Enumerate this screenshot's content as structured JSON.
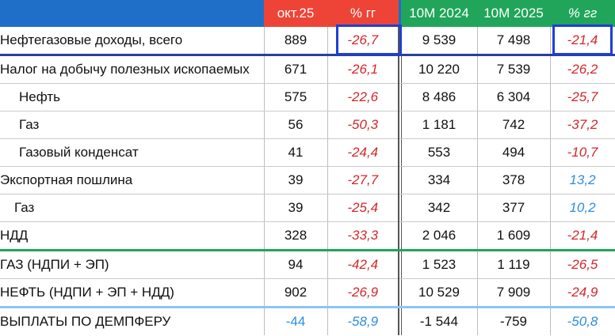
{
  "header": {
    "period_month": "окт.25",
    "pct_yoy_1": "% гг",
    "period_10m_prev": "10M 2024",
    "period_10m_curr": "10M 2025",
    "pct_yoy_2": "% гг"
  },
  "rows": [
    {
      "label": "Нефтегазовые доходы, всего",
      "m": "889",
      "p1": "-26,7",
      "a": "9 539",
      "b": "7 498",
      "p2": "-21,4"
    },
    {
      "label": "Налог на добычу полезных ископаемых",
      "m": "671",
      "p1": "-26,1",
      "a": "10 220",
      "b": "7 539",
      "p2": "-26,2"
    },
    {
      "label": "Нефть",
      "m": "575",
      "p1": "-22,6",
      "a": "8 486",
      "b": "6 304",
      "p2": "-25,7"
    },
    {
      "label": "Газ",
      "m": "56",
      "p1": "-50,3",
      "a": "1 181",
      "b": "742",
      "p2": "-37,2"
    },
    {
      "label": "Газовый конденсат",
      "m": "41",
      "p1": "-24,4",
      "a": "553",
      "b": "494",
      "p2": "-10,7"
    },
    {
      "label": "Экспортная пошлина",
      "m": "39",
      "p1": "-27,7",
      "a": "334",
      "b": "378",
      "p2": "13,2"
    },
    {
      "label": "Газ",
      "m": "39",
      "p1": "-25,4",
      "a": "342",
      "b": "377",
      "p2": "10,2"
    },
    {
      "label": "НДД",
      "m": "328",
      "p1": "-33,3",
      "a": "2 046",
      "b": "1 609",
      "p2": "-21,4"
    },
    {
      "label": "ГАЗ (НДПИ + ЭП)",
      "m": "94",
      "p1": "-42,4",
      "a": "1 523",
      "b": "1 119",
      "p2": "-26,5"
    },
    {
      "label": "НЕФТЬ (НДПИ + ЭП + НДД)",
      "m": "902",
      "p1": "-26,9",
      "a": "10 529",
      "b": "7 909",
      "p2": "-24,9"
    },
    {
      "label": "ВЫПЛАТЫ ПО ДЕМПФЕРУ",
      "m": "-44",
      "p1": "-58,9",
      "a": "-1 544",
      "b": "-759",
      "p2": "-50,8"
    }
  ],
  "colors": {
    "header_blue": "#1f6fc9",
    "header_red": "#ee4437",
    "header_green": "#20a55a",
    "negative": "#d3272b",
    "positive": "#2e8ee0",
    "highlight": "#1d3fd6"
  }
}
